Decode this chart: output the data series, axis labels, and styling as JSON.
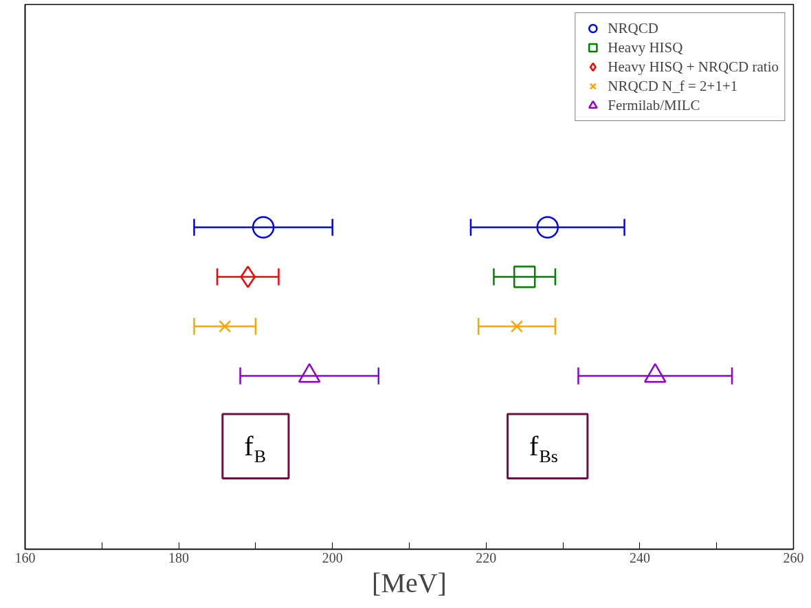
{
  "chart_data": {
    "type": "scatter",
    "orientation": "horizontal",
    "xlabel": "[MeV]",
    "categories": [
      null,
      null,
      null,
      null,
      null,
      null,
      null,
      null,
      null,
      null,
      null
    ],
    "xlim": [
      160,
      260
    ],
    "xticks": [
      160,
      {
        "value": 170,
        "label": null
      },
      180,
      {
        "value": 190,
        "label": null
      },
      200,
      {
        "value": 210,
        "label": null
      },
      220,
      {
        "value": 230,
        "label": null
      },
      240,
      {
        "value": 250,
        "label": null
      },
      260
    ],
    "tick_labels": "x",
    "grid": false,
    "legend": "top right",
    "series": [
      {
        "name": "NRQCD",
        "color": "#0000ff",
        "marker": "circle",
        "values": [
          null,
          null,
          null,
          null,
          191,
          null,
          null,
          null,
          null,
          null,
          null
        ],
        "errors": [
          null,
          null,
          null,
          null,
          [
            182,
            200
          ],
          null,
          null,
          null,
          null,
          null,
          null
        ]
      },
      {
        "color": "#0000ff",
        "marker": "circle",
        "values": [
          null,
          null,
          null,
          null,
          228,
          null,
          null,
          null,
          null,
          null,
          null
        ],
        "errors": [
          null,
          null,
          null,
          null,
          [
            218,
            238
          ],
          null,
          null,
          null,
          null,
          null,
          null
        ]
      },
      {
        "name": "Heavy HISQ",
        "color": "#008000",
        "marker": "square",
        "values": [
          null,
          null,
          null,
          null,
          null,
          225,
          null,
          null,
          null,
          null,
          null
        ],
        "errors": [
          null,
          null,
          null,
          null,
          null,
          [
            221,
            229
          ],
          null,
          null,
          null,
          null,
          null
        ]
      },
      {
        "name": "Heavy HISQ + NRQCD ratio",
        "color": "#ff0000",
        "marker": "diamond",
        "values": [
          null,
          null,
          null,
          null,
          null,
          189,
          null,
          null,
          null,
          null,
          null
        ],
        "errors": [
          null,
          null,
          null,
          null,
          null,
          [
            185,
            193
          ],
          null,
          null,
          null,
          null,
          null
        ]
      },
      {
        "name": "NRQCD N_f = 2+1+1",
        "color": "#ffa500",
        "marker": "cross",
        "values": [
          null,
          null,
          null,
          null,
          null,
          null,
          186,
          null,
          null,
          null,
          null
        ],
        "errors": [
          null,
          null,
          null,
          null,
          null,
          null,
          [
            182,
            190
          ],
          null,
          null,
          null,
          null
        ]
      },
      {
        "color": "#ffa500",
        "marker": "cross",
        "values": [
          null,
          null,
          null,
          null,
          null,
          null,
          224,
          null,
          null,
          null,
          null
        ],
        "errors": [
          null,
          null,
          null,
          null,
          null,
          null,
          [
            219,
            229
          ],
          null,
          null,
          null,
          null
        ]
      },
      {
        "name": "Fermilab/MILC",
        "color": "#9400d3",
        "marker": "triangle",
        "values": [
          null,
          null,
          null,
          null,
          null,
          null,
          null,
          197,
          null,
          null,
          null
        ],
        "errors": [
          null,
          null,
          null,
          null,
          null,
          null,
          null,
          [
            188,
            206
          ],
          null,
          null,
          null
        ]
      },
      {
        "color": "#9400d3",
        "marker": "triangle",
        "values": [
          null,
          null,
          null,
          null,
          null,
          null,
          null,
          242,
          null,
          null,
          null
        ],
        "errors": [
          null,
          null,
          null,
          null,
          null,
          null,
          null,
          [
            232,
            252
          ],
          null,
          null,
          null
        ]
      }
    ],
    "annotations": [
      "f$_{B}$",
      "f$_{Bs}$"
    ]
  }
}
